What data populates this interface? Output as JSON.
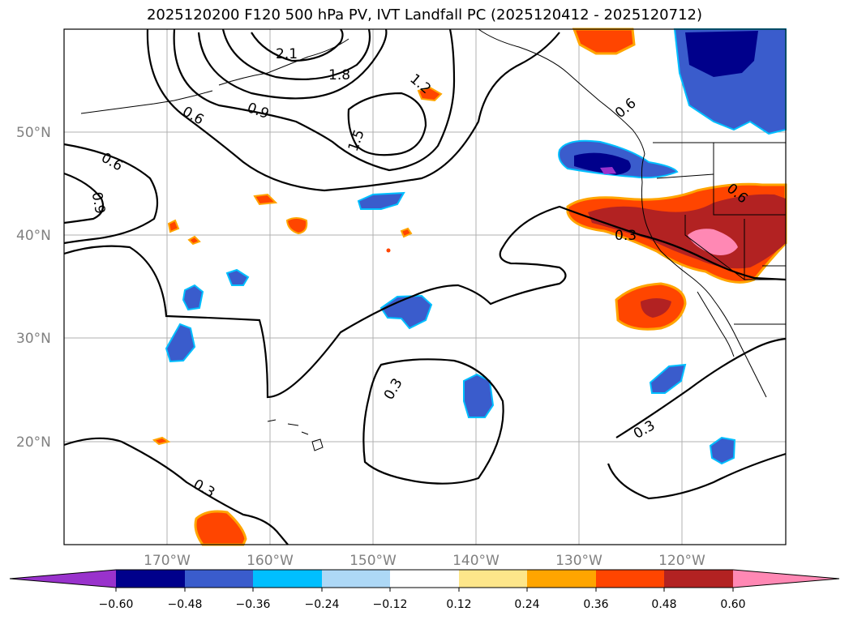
{
  "title": "2025120200 F120 500 hPa PV, IVT Landfall PC (2025120412 - 2025120712)",
  "lat_labels": [
    "50°N",
    "40°N",
    "30°N",
    "20°N"
  ],
  "lon_labels": [
    "170°W",
    "160°W",
    "150°W",
    "140°W",
    "130°W",
    "120°W"
  ],
  "contour_labels": [
    "2.1",
    "1.8",
    "1.5",
    "1.2",
    "0.9",
    "0.6",
    "0.6",
    "0.9",
    "0.3",
    "0.3",
    "0.3",
    "0.3",
    "0.6",
    "0.6"
  ],
  "colorbar": {
    "tick_labels": [
      "−0.60",
      "−0.48",
      "−0.36",
      "−0.24",
      "−0.12",
      "0.12",
      "0.24",
      "0.36",
      "0.48",
      "0.60"
    ],
    "colors": [
      "#9932cc",
      "#00008b",
      "#3a5ccc",
      "#00bfff",
      "#add8f6",
      "#ffffff",
      "#fde68a",
      "#ffa500",
      "#ff4500",
      "#b22222",
      "#ff88b4"
    ]
  }
}
